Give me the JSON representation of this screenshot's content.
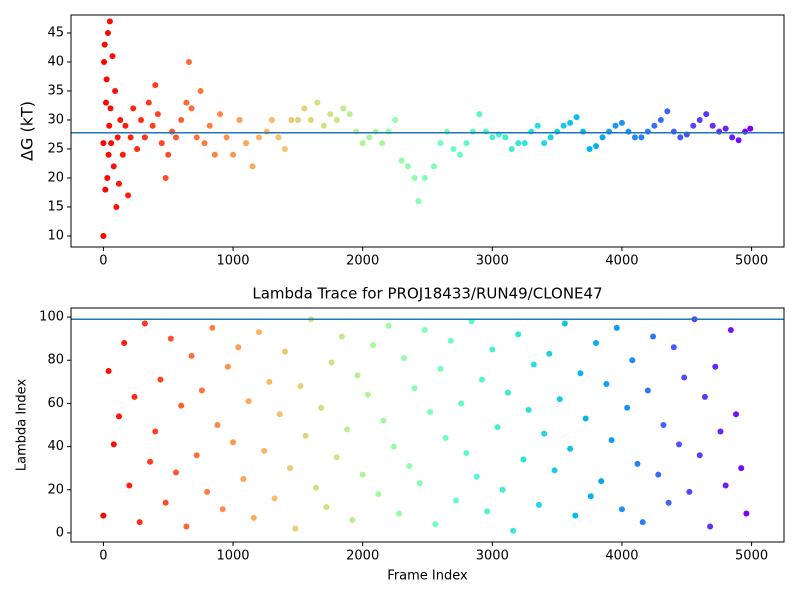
{
  "chart_data": [
    {
      "type": "scatter",
      "ylabel": "ΔG (kT)",
      "colormap": "rainbow_r",
      "xlim": [
        -250,
        5250
      ],
      "ylim": [
        8.1,
        48.1
      ],
      "xticks": [
        0,
        1000,
        2000,
        3000,
        4000,
        5000
      ],
      "yticks": [
        10,
        15,
        20,
        25,
        30,
        35,
        40,
        45
      ],
      "hline": 27.8,
      "hline_color": "#1f77b4",
      "x": [
        0,
        0,
        5,
        10,
        15,
        20,
        25,
        30,
        35,
        40,
        45,
        50,
        55,
        60,
        70,
        80,
        90,
        100,
        110,
        120,
        130,
        150,
        170,
        190,
        210,
        230,
        260,
        290,
        320,
        350,
        380,
        400,
        420,
        450,
        480,
        500,
        530,
        560,
        600,
        640,
        660,
        680,
        720,
        750,
        780,
        820,
        860,
        900,
        950,
        1000,
        1050,
        1100,
        1150,
        1200,
        1260,
        1300,
        1350,
        1400,
        1450,
        1500,
        1550,
        1600,
        1650,
        1700,
        1750,
        1800,
        1850,
        1900,
        1950,
        2000,
        2050,
        2100,
        2150,
        2200,
        2250,
        2300,
        2350,
        2400,
        2430,
        2480,
        2550,
        2600,
        2650,
        2700,
        2750,
        2800,
        2850,
        2900,
        2950,
        3000,
        3050,
        3100,
        3150,
        3200,
        3250,
        3300,
        3350,
        3400,
        3450,
        3500,
        3550,
        3600,
        3650,
        3700,
        3750,
        3800,
        3850,
        3900,
        3950,
        4000,
        4050,
        4100,
        4150,
        4200,
        4250,
        4300,
        4350,
        4400,
        4450,
        4500,
        4550,
        4600,
        4650,
        4700,
        4750,
        4800,
        4850,
        4900,
        4950,
        4990
      ],
      "values": [
        10,
        26,
        40,
        43,
        18,
        33,
        37,
        20,
        45,
        24,
        29,
        47,
        32,
        26,
        41,
        22,
        35,
        15,
        27,
        19,
        30,
        24,
        29,
        17,
        27,
        32,
        25,
        30,
        27,
        33,
        29,
        36,
        31,
        26,
        20,
        24,
        28,
        27,
        30,
        33,
        40,
        32,
        27,
        35,
        26,
        29,
        24,
        31,
        27,
        24,
        30,
        26,
        22,
        27,
        28,
        30,
        27,
        25,
        30,
        30,
        32,
        30,
        33,
        29,
        31,
        30,
        32,
        31,
        28,
        26,
        27,
        28,
        26,
        28,
        30,
        23,
        22,
        20,
        16,
        20,
        22,
        26,
        28,
        25,
        24,
        26,
        28,
        31,
        28,
        27,
        27.5,
        27,
        25,
        26,
        26,
        28,
        29,
        26,
        27,
        28,
        29,
        29.5,
        30.5,
        28,
        25,
        25.5,
        27,
        28,
        29,
        29.5,
        28,
        27,
        27,
        28,
        29,
        30,
        31.5,
        28,
        27,
        27.5,
        29,
        30,
        31,
        29,
        28,
        28.5,
        27,
        26.5,
        28,
        28.5
      ]
    },
    {
      "type": "scatter",
      "title": "Lambda Trace for PROJ18433/RUN49/CLONE47",
      "xlabel": "Frame Index",
      "ylabel": "Lambda Index",
      "colormap": "rainbow_r",
      "xlim": [
        -250,
        5250
      ],
      "ylim": [
        -4.2,
        104.2
      ],
      "xticks": [
        0,
        1000,
        2000,
        3000,
        4000,
        5000
      ],
      "yticks": [
        0,
        20,
        40,
        60,
        80,
        100
      ],
      "hline": 99,
      "hline_color": "#1f77b4",
      "x": [
        0,
        40,
        80,
        120,
        160,
        200,
        240,
        280,
        320,
        360,
        400,
        440,
        480,
        520,
        560,
        600,
        640,
        680,
        720,
        760,
        800,
        840,
        880,
        920,
        960,
        1000,
        1040,
        1080,
        1120,
        1160,
        1200,
        1240,
        1280,
        1320,
        1360,
        1400,
        1440,
        1480,
        1520,
        1560,
        1600,
        1640,
        1680,
        1720,
        1760,
        1800,
        1840,
        1880,
        1920,
        1960,
        2000,
        2040,
        2080,
        2120,
        2160,
        2200,
        2240,
        2280,
        2320,
        2360,
        2400,
        2440,
        2480,
        2520,
        2560,
        2600,
        2640,
        2680,
        2720,
        2760,
        2800,
        2840,
        2880,
        2920,
        2960,
        3000,
        3040,
        3080,
        3120,
        3160,
        3200,
        3240,
        3280,
        3320,
        3360,
        3400,
        3440,
        3480,
        3520,
        3560,
        3600,
        3640,
        3680,
        3720,
        3760,
        3800,
        3840,
        3880,
        3920,
        3960,
        4000,
        4040,
        4080,
        4120,
        4160,
        4200,
        4240,
        4280,
        4320,
        4360,
        4400,
        4440,
        4480,
        4520,
        4560,
        4600,
        4640,
        4680,
        4720,
        4760,
        4800,
        4840,
        4880,
        4920,
        4960
      ],
      "values": [
        8,
        75,
        41,
        54,
        88,
        22,
        63,
        5,
        97,
        33,
        47,
        71,
        14,
        90,
        28,
        59,
        3,
        82,
        36,
        66,
        19,
        95,
        50,
        11,
        77,
        42,
        86,
        25,
        61,
        7,
        93,
        38,
        70,
        16,
        55,
        84,
        30,
        2,
        68,
        45,
        99,
        21,
        58,
        12,
        79,
        35,
        91,
        48,
        6,
        73,
        27,
        64,
        87,
        18,
        52,
        96,
        40,
        9,
        81,
        31,
        67,
        23,
        94,
        56,
        4,
        76,
        44,
        89,
        15,
        60,
        37,
        98,
        26,
        71,
        10,
        85,
        49,
        20,
        65,
        1,
        92,
        34,
        57,
        78,
        13,
        46,
        83,
        29,
        62,
        97,
        39,
        8,
        74,
        53,
        17,
        88,
        24,
        69,
        43,
        95,
        11,
        58,
        80,
        32,
        5,
        66,
        91,
        27,
        50,
        14,
        86,
        41,
        72,
        19,
        99,
        36,
        63,
        3,
        77,
        47,
        22,
        94,
        55,
        30,
        9
      ]
    }
  ]
}
